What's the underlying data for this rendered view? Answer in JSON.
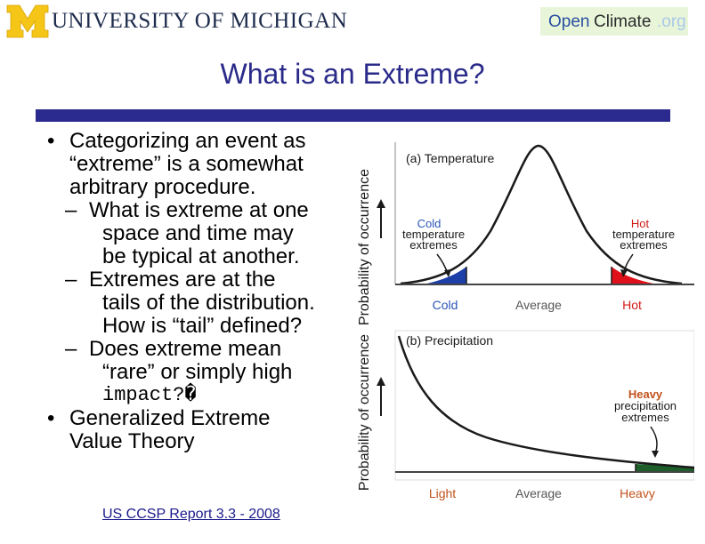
{
  "header": {
    "university_name": "UNIVERSITY OF MICHIGAN",
    "openclimate": {
      "open": "Open",
      "climate": "Climate",
      "tld": ".org"
    }
  },
  "slide": {
    "title": "What is an Extreme?",
    "bullets": [
      {
        "text": "Categorizing an event as “extreme” is a somewhat arbitrary procedure.",
        "lines": [
          "Categorizing an event as",
          "“extreme” is a somewhat",
          "arbitrary procedure."
        ]
      },
      {
        "lines": [
          "What is extreme at one",
          "space and time may",
          "be typical at another."
        ]
      },
      {
        "lines": [
          "Extremes are at the",
          "tails of the distribution.",
          "How is “tail” defined?"
        ]
      },
      {
        "lines": [
          "Does extreme mean",
          "“rare” or simply high"
        ],
        "mono_line": "impact?�"
      },
      {
        "lines": [
          "Generalized Extreme",
          "Value Theory"
        ]
      }
    ],
    "bullet_symbol": "•",
    "dash_symbol": "–",
    "citation": "US CCSP Report 3.3 - 2008"
  },
  "figure": {
    "panel_a": {
      "title": "(a) Temperature",
      "ylabel": "Probability of occurrence",
      "cold_label": [
        "Cold",
        "temperature",
        "extremes"
      ],
      "hot_label": [
        "Hot",
        "temperature",
        "extremes"
      ],
      "x_labels": {
        "left": "Cold",
        "center": "Average",
        "right": "Hot"
      }
    },
    "panel_b": {
      "title": "(b) Precipitation",
      "ylabel": "Probability of occurrence",
      "heavy_label": [
        "Heavy",
        "precipitation",
        "extremes"
      ],
      "x_labels": {
        "left": "Light",
        "center": "Average",
        "right": "Heavy"
      }
    },
    "colors": {
      "cold": "#1d3fa8",
      "hot": "#e0101a",
      "heavy": "#1d5e2a",
      "label_blue": "#2a55b8",
      "label_red": "#d21b1b",
      "axis_label": "#c2521b",
      "dark": "#1a1a1a"
    }
  },
  "colors": {
    "title": "#2a2a8a",
    "rule": "#2b2b8f",
    "maize": "#f5c518",
    "umblue": "#1d2b4c"
  }
}
